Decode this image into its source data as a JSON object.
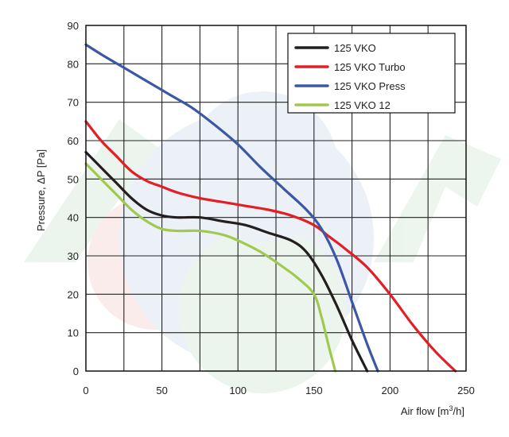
{
  "chart_data": {
    "type": "line",
    "xlabel": "Air flow [m",
    "xlabel_sup": "3",
    "xlabel_end": "/h]",
    "ylabel": "Pressure, ΔP [Pa]",
    "xlim": [
      0,
      250
    ],
    "ylim": [
      0,
      90
    ],
    "x_ticks": [
      0,
      50,
      100,
      150,
      200,
      250
    ],
    "y_ticks": [
      0,
      10,
      20,
      30,
      40,
      50,
      60,
      70,
      80,
      90
    ],
    "grid": true,
    "legend_position": "top-right",
    "series": [
      {
        "name": "125 VKO",
        "color": "#231f20",
        "points": [
          [
            0,
            57
          ],
          [
            10,
            53
          ],
          [
            20,
            49
          ],
          [
            30,
            45
          ],
          [
            40,
            42
          ],
          [
            50,
            40.5
          ],
          [
            60,
            40
          ],
          [
            75,
            40
          ],
          [
            90,
            39
          ],
          [
            105,
            38
          ],
          [
            120,
            36
          ],
          [
            135,
            34
          ],
          [
            145,
            31
          ],
          [
            155,
            25
          ],
          [
            165,
            17
          ],
          [
            175,
            8
          ],
          [
            185,
            0
          ]
        ]
      },
      {
        "name": "125 VKO Turbo",
        "color": "#e31e24",
        "points": [
          [
            0,
            65
          ],
          [
            10,
            60
          ],
          [
            20,
            56
          ],
          [
            30,
            52
          ],
          [
            40,
            49.5
          ],
          [
            50,
            48
          ],
          [
            60,
            46.5
          ],
          [
            75,
            45
          ],
          [
            90,
            44
          ],
          [
            105,
            43
          ],
          [
            120,
            42
          ],
          [
            135,
            40.5
          ],
          [
            150,
            38
          ],
          [
            160,
            35
          ],
          [
            170,
            32
          ],
          [
            185,
            27
          ],
          [
            200,
            20
          ],
          [
            215,
            12
          ],
          [
            230,
            5
          ],
          [
            243,
            0
          ]
        ]
      },
      {
        "name": "125 VKO Press",
        "color": "#3c58a5",
        "points": [
          [
            0,
            85
          ],
          [
            12,
            82
          ],
          [
            25,
            79
          ],
          [
            40,
            75.5
          ],
          [
            55,
            72
          ],
          [
            70,
            68.5
          ],
          [
            85,
            64
          ],
          [
            100,
            59
          ],
          [
            115,
            53
          ],
          [
            130,
            47.5
          ],
          [
            145,
            42
          ],
          [
            155,
            37
          ],
          [
            165,
            29
          ],
          [
            175,
            18
          ],
          [
            185,
            7
          ],
          [
            192,
            0
          ]
        ]
      },
      {
        "name": "125 VKO 12",
        "color": "#a0c950",
        "points": [
          [
            0,
            54
          ],
          [
            10,
            50
          ],
          [
            20,
            46
          ],
          [
            30,
            42
          ],
          [
            40,
            39
          ],
          [
            50,
            37
          ],
          [
            60,
            36.5
          ],
          [
            75,
            36.5
          ],
          [
            90,
            35.5
          ],
          [
            100,
            34
          ],
          [
            115,
            31
          ],
          [
            130,
            27
          ],
          [
            140,
            24
          ],
          [
            150,
            20
          ],
          [
            155,
            14
          ],
          [
            160,
            6
          ],
          [
            164,
            0
          ]
        ]
      }
    ]
  }
}
